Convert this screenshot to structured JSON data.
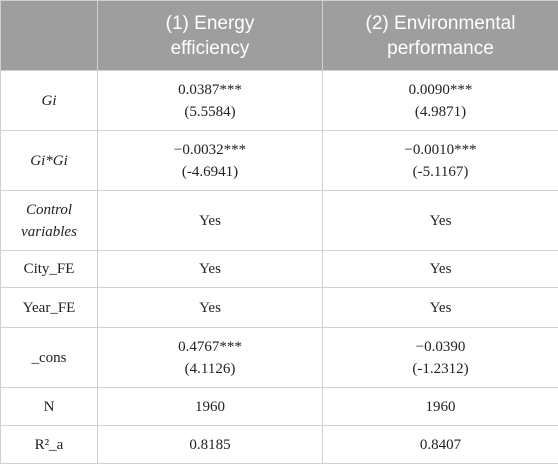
{
  "table": {
    "columns": [
      "(1) Energy efficiency",
      "(2) Environmental performance"
    ],
    "rows": [
      {
        "label": "Gi",
        "italic": true,
        "cells": [
          [
            "0.0387***",
            "(5.5584)"
          ],
          [
            "0.0090***",
            "(4.9871)"
          ]
        ]
      },
      {
        "label": "Gi*Gi",
        "italic": true,
        "cells": [
          [
            "−0.0032***",
            "(-4.6941)"
          ],
          [
            "−0.0010***",
            "(-5.1167)"
          ]
        ]
      },
      {
        "label": "Control variables",
        "italic": true,
        "cells": [
          [
            "Yes"
          ],
          [
            "Yes"
          ]
        ]
      },
      {
        "label": "City_FE",
        "italic": false,
        "cells": [
          [
            "Yes"
          ],
          [
            "Yes"
          ]
        ]
      },
      {
        "label": "Year_FE",
        "italic": false,
        "cells": [
          [
            "Yes"
          ],
          [
            "Yes"
          ]
        ]
      },
      {
        "label": "_cons",
        "italic": false,
        "cells": [
          [
            "0.4767***",
            "(4.1126)"
          ],
          [
            "−0.0390",
            "(-1.2312)"
          ]
        ]
      },
      {
        "label": "N",
        "italic": false,
        "cells": [
          [
            "1960"
          ],
          [
            "1960"
          ]
        ]
      },
      {
        "label": "R²_a",
        "italic": false,
        "cells": [
          [
            "0.8185"
          ],
          [
            "0.8407"
          ]
        ]
      }
    ]
  }
}
